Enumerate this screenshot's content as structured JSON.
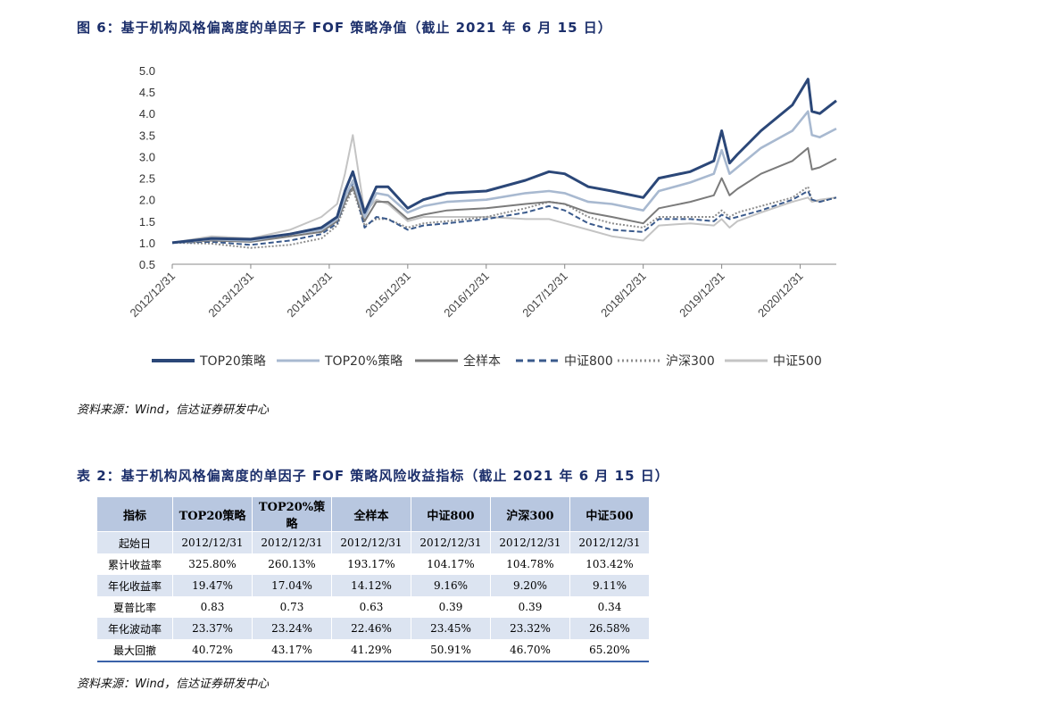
{
  "figure": {
    "title": "图 6：基于机构风格偏离度的单因子 FOF 策略净值（截止 2021 年 6 月 15 日）",
    "source": "资料来源：Wind，信达证券研发中心"
  },
  "chart_data": {
    "type": "line",
    "title": "图 6：基于机构风格偏离度的单因子 FOF 策略净值（截止 2021 年 6 月 15 日）",
    "xlabel": "",
    "ylabel": "",
    "ylim": [
      0.5,
      5.0
    ],
    "yticks": [
      "5.0",
      "4.5",
      "4.0",
      "3.5",
      "3.0",
      "2.5",
      "2.0",
      "1.5",
      "1.0",
      "0.5"
    ],
    "xticks": [
      "2012/12/31",
      "2013/12/31",
      "2014/12/31",
      "2015/12/31",
      "2016/12/31",
      "2017/12/31",
      "2018/12/31",
      "2019/12/31",
      "2020/12/31"
    ],
    "x": [
      2013.0,
      2013.5,
      2014.0,
      2014.5,
      2014.9,
      2015.1,
      2015.2,
      2015.3,
      2015.45,
      2015.6,
      2015.75,
      2016.0,
      2016.2,
      2016.5,
      2017.0,
      2017.5,
      2017.8,
      2018.0,
      2018.3,
      2018.6,
      2019.0,
      2019.2,
      2019.6,
      2019.9,
      2020.0,
      2020.1,
      2020.2,
      2020.5,
      2020.9,
      2021.1,
      2021.15,
      2021.25,
      2021.46
    ],
    "series": [
      {
        "name": "TOP20策略",
        "color": "#2b4778",
        "dash": "solid",
        "values": [
          1.0,
          1.1,
          1.08,
          1.2,
          1.35,
          1.6,
          2.2,
          2.65,
          1.7,
          2.3,
          2.3,
          1.8,
          2.0,
          2.15,
          2.2,
          2.45,
          2.65,
          2.6,
          2.3,
          2.2,
          2.05,
          2.5,
          2.65,
          2.9,
          3.6,
          2.85,
          3.05,
          3.6,
          4.2,
          4.8,
          4.05,
          4.0,
          4.3
        ]
      },
      {
        "name": "TOP20%策略",
        "color": "#a8b9d0",
        "dash": "solid",
        "values": [
          1.0,
          1.08,
          1.05,
          1.2,
          1.3,
          1.55,
          2.05,
          2.45,
          1.6,
          2.15,
          2.1,
          1.7,
          1.85,
          1.95,
          2.0,
          2.15,
          2.2,
          2.15,
          1.95,
          1.9,
          1.75,
          2.2,
          2.4,
          2.6,
          3.15,
          2.6,
          2.75,
          3.2,
          3.6,
          4.05,
          3.5,
          3.45,
          3.65
        ]
      },
      {
        "name": "全样本",
        "color": "#7b7b7b",
        "dash": "solid",
        "values": [
          1.0,
          1.05,
          1.02,
          1.15,
          1.25,
          1.5,
          1.95,
          2.3,
          1.5,
          1.95,
          1.95,
          1.55,
          1.65,
          1.75,
          1.8,
          1.9,
          1.95,
          1.9,
          1.7,
          1.6,
          1.45,
          1.8,
          1.95,
          2.1,
          2.5,
          2.1,
          2.25,
          2.6,
          2.9,
          3.2,
          2.7,
          2.75,
          2.95
        ]
      },
      {
        "name": "中证800",
        "color": "#3a5a8c",
        "dash": "dashed",
        "values": [
          1.0,
          1.02,
          0.95,
          1.05,
          1.2,
          1.45,
          1.95,
          2.4,
          1.35,
          1.6,
          1.55,
          1.3,
          1.4,
          1.45,
          1.55,
          1.7,
          1.85,
          1.75,
          1.45,
          1.3,
          1.25,
          1.55,
          1.55,
          1.5,
          1.65,
          1.55,
          1.6,
          1.75,
          2.0,
          2.2,
          2.0,
          1.95,
          2.05
        ]
      },
      {
        "name": "沪深300",
        "color": "#8e8e8e",
        "dash": "dotted",
        "values": [
          1.0,
          0.98,
          0.88,
          0.95,
          1.1,
          1.4,
          1.85,
          2.25,
          1.4,
          1.55,
          1.55,
          1.35,
          1.45,
          1.5,
          1.6,
          1.8,
          1.95,
          1.9,
          1.6,
          1.45,
          1.35,
          1.6,
          1.6,
          1.6,
          1.75,
          1.6,
          1.7,
          1.85,
          2.05,
          2.3,
          2.0,
          1.95,
          2.05
        ]
      },
      {
        "name": "中证500",
        "color": "#c4c4c4",
        "dash": "solid",
        "values": [
          1.0,
          1.15,
          1.1,
          1.3,
          1.6,
          1.9,
          2.6,
          3.5,
          1.7,
          2.0,
          1.9,
          1.5,
          1.6,
          1.6,
          1.6,
          1.55,
          1.55,
          1.45,
          1.3,
          1.15,
          1.05,
          1.4,
          1.45,
          1.4,
          1.55,
          1.35,
          1.5,
          1.7,
          1.95,
          2.05,
          1.95,
          2.0,
          2.05
        ]
      }
    ]
  },
  "table": {
    "title": "表 2：基于机构风格偏离度的单因子 FOF 策略风险收益指标（截止 2021 年 6 月 15 日）",
    "source": "资料来源：Wind，信达证券研发中心",
    "headers": [
      "指标",
      "TOP20策略",
      "TOP20%策略",
      "全样本",
      "中证800",
      "沪深300",
      "中证500"
    ],
    "rows": [
      [
        "起始日",
        "2012/12/31",
        "2012/12/31",
        "2012/12/31",
        "2012/12/31",
        "2012/12/31",
        "2012/12/31"
      ],
      [
        "累计收益率",
        "325.80%",
        "260.13%",
        "193.17%",
        "104.17%",
        "104.78%",
        "103.42%"
      ],
      [
        "年化收益率",
        "19.47%",
        "17.04%",
        "14.12%",
        "9.16%",
        "9.20%",
        "9.11%"
      ],
      [
        "夏普比率",
        "0.83",
        "0.73",
        "0.63",
        "0.39",
        "0.39",
        "0.34"
      ],
      [
        "年化波动率",
        "23.37%",
        "23.24%",
        "22.46%",
        "23.45%",
        "23.32%",
        "26.58%"
      ],
      [
        "最大回撤",
        "40.72%",
        "43.17%",
        "41.29%",
        "50.91%",
        "46.70%",
        "65.20%"
      ]
    ]
  }
}
